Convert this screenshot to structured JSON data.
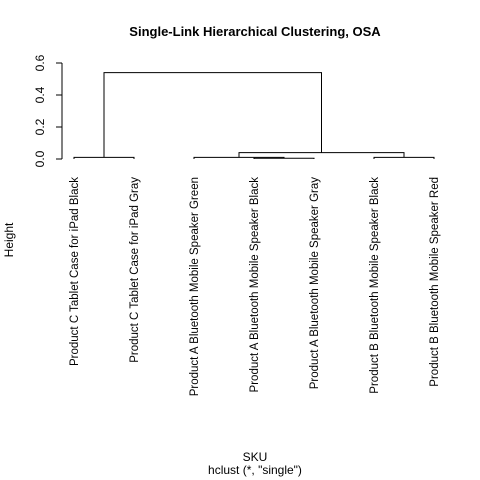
{
  "chart_data": {
    "type": "dendrogram",
    "title": "Single-Link Hierarchical Clustering, OSA",
    "xlabel": "SKU",
    "sublabel": "hclust (*, \"single\")",
    "ylabel": "Height",
    "ylim": [
      0,
      0.6
    ],
    "yticks": [
      0.0,
      0.2,
      0.4,
      0.6
    ],
    "ytick_labels": [
      "0.0",
      "0.2",
      "0.4",
      "0.6"
    ],
    "leaves": [
      "Product C Tablet Case for iPad Black",
      "Product C Tablet Case for iPad Gray",
      "Product A Bluetooth Mobile Speaker Green",
      "Product A Bluetooth Mobile Speaker Black",
      "Product A Bluetooth Mobile Speaker Gray",
      "Product B Bluetooth Mobile Speaker Black",
      "Product B Bluetooth Mobile Speaker Red"
    ],
    "merges": [
      {
        "left": "L3",
        "right": "L4",
        "height": 0.005
      },
      {
        "left": "L0",
        "right": "L1",
        "height": 0.01
      },
      {
        "left": "L5",
        "right": "L6",
        "height": 0.01
      },
      {
        "left": "L2",
        "right": "M0",
        "height": 0.01
      },
      {
        "left": "M3",
        "right": "M2",
        "height": 0.04
      },
      {
        "left": "M1",
        "right": "M4",
        "height": 0.54
      }
    ]
  }
}
